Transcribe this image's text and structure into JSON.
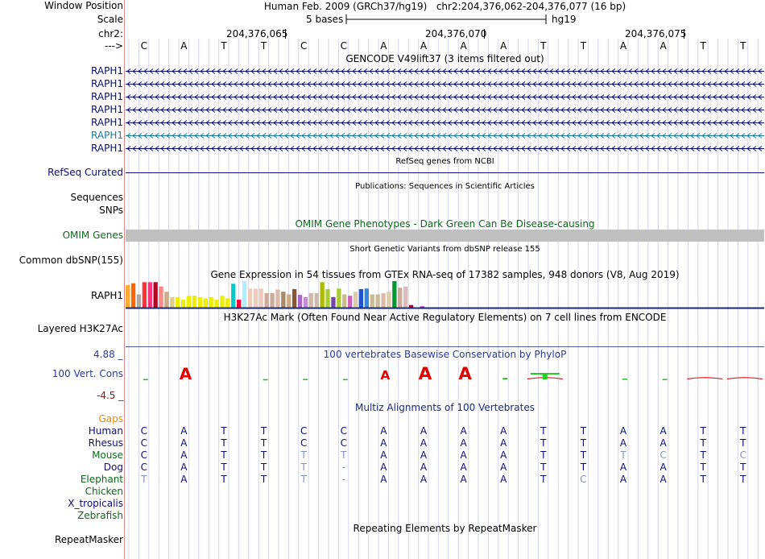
{
  "position": {
    "label_window": "Window Position",
    "label_scale": "Scale",
    "label_chrom": "chr2:",
    "label_strand": "--->",
    "assembly": "Human Feb. 2009 (GRCh37/hg19)",
    "range": "chr2:204,376,062-204,376,077 (16 bp)",
    "scale_text": "5 bases",
    "scale_db": "hg19",
    "ticks": [
      "204,376,065",
      "204,376,070",
      "204,376,075"
    ],
    "sequence": [
      "C",
      "A",
      "T",
      "T",
      "C",
      "C",
      "A",
      "A",
      "A",
      "A",
      "T",
      "T",
      "A",
      "A",
      "T",
      "T"
    ]
  },
  "gencode": {
    "title": "GENCODE V49lift37 (3 items filtered out)",
    "genes": [
      "RAPH1",
      "RAPH1",
      "RAPH1",
      "RAPH1",
      "RAPH1",
      "RAPH1",
      "RAPH1"
    ],
    "colors": [
      "#0c0c78",
      "#0c0c78",
      "#0c0c78",
      "#0c0c78",
      "#0c0c78",
      "#1a7a9a",
      "#0c0c78"
    ]
  },
  "refseq": {
    "title": "RefSeq genes from NCBI",
    "label": "RefSeq Curated"
  },
  "publications": {
    "title": "Publications: Sequences in Scientific Articles",
    "label": "Sequences"
  },
  "snps": {
    "label": "SNPs"
  },
  "omim": {
    "title": "OMIM Gene Phenotypes - Dark Green Can Be Disease-causing",
    "label": "OMIM Genes"
  },
  "dbsnp": {
    "title": "Short Genetic Variants from dbSNP release 155",
    "label": "Common dbSNP(155)"
  },
  "gtex": {
    "title": "Gene Expression in 54 tissues from GTEx RNA-seq of 17382 samples, 948 donors (V8, Aug 2019)",
    "label": "RAPH1",
    "bars": [
      {
        "c": "#ffaa33",
        "v": 0.85
      },
      {
        "c": "#ff6600",
        "v": 0.92
      },
      {
        "c": "#aaaaaa",
        "v": 0.5
      },
      {
        "c": "#ff3333",
        "v": 0.96
      },
      {
        "c": "#ff3377",
        "v": 0.96
      },
      {
        "c": "#bb0022",
        "v": 0.96
      },
      {
        "c": "#ff8888",
        "v": 0.8
      },
      {
        "c": "#ccaa88",
        "v": 0.6
      },
      {
        "c": "#ddcc88",
        "v": 0.4
      },
      {
        "c": "#eeee00",
        "v": 0.4
      },
      {
        "c": "#eeee00",
        "v": 0.3
      },
      {
        "c": "#eeee00",
        "v": 0.45
      },
      {
        "c": "#eeee00",
        "v": 0.45
      },
      {
        "c": "#eeee00",
        "v": 0.4
      },
      {
        "c": "#eeee00",
        "v": 0.35
      },
      {
        "c": "#eeee00",
        "v": 0.4
      },
      {
        "c": "#eeee00",
        "v": 0.3
      },
      {
        "c": "#eeee00",
        "v": 0.45
      },
      {
        "c": "#eeee00",
        "v": 0.35
      },
      {
        "c": "#00cccc",
        "v": 0.9
      },
      {
        "c": "#ff0033",
        "v": 0.3
      },
      {
        "c": "#aaeeff",
        "v": 1.0
      },
      {
        "c": "#eeccbb",
        "v": 0.72
      },
      {
        "c": "#eeccbb",
        "v": 0.72
      },
      {
        "c": "#eeccbb",
        "v": 0.72
      },
      {
        "c": "#ccaa99",
        "v": 0.55
      },
      {
        "c": "#ccaa99",
        "v": 0.55
      },
      {
        "c": "#ddbbaa",
        "v": 0.68
      },
      {
        "c": "#aa8866",
        "v": 0.6
      },
      {
        "c": "#ccaa88",
        "v": 0.5
      },
      {
        "c": "#885533",
        "v": 0.7
      },
      {
        "c": "#aa66cc",
        "v": 0.48
      },
      {
        "c": "#cc88dd",
        "v": 0.4
      },
      {
        "c": "#ccbbaa",
        "v": 0.55
      },
      {
        "c": "#ccbbaa",
        "v": 0.55
      },
      {
        "c": "#aabb00",
        "v": 0.96
      },
      {
        "c": "#aacc33",
        "v": 0.7
      },
      {
        "c": "#7744aa",
        "v": 0.4
      },
      {
        "c": "#aacc33",
        "v": 0.72
      },
      {
        "c": "#ccbb88",
        "v": 0.5
      },
      {
        "c": "#cc66bb",
        "v": 0.45
      },
      {
        "c": "#ddccaa",
        "v": 0.6
      },
      {
        "c": "#2255cc",
        "v": 0.7
      },
      {
        "c": "#3388dd",
        "v": 0.72
      },
      {
        "c": "#ccbb99",
        "v": 0.5
      },
      {
        "c": "#ccbb99",
        "v": 0.5
      },
      {
        "c": "#ddbbaa",
        "v": 0.55
      },
      {
        "c": "#ddccaa",
        "v": 0.6
      },
      {
        "c": "#009933",
        "v": 1.0
      },
      {
        "c": "#ccaa99",
        "v": 0.75
      },
      {
        "c": "#ddbbbb",
        "v": 0.8
      },
      {
        "c": "#aa0033",
        "v": 0.1
      },
      {
        "c": "#ffffff",
        "v": 0.05
      },
      {
        "c": "#aa22cc",
        "v": 0.05
      }
    ]
  },
  "h3k27ac": {
    "title": "H3K27Ac Mark (Often Found Near Active Regulatory Elements) on 7 cell lines from ENCODE",
    "label": "Layered H3K27Ac"
  },
  "phylop": {
    "title": "100 vertebrates Basewise Conservation by PhyloP",
    "label": "100 Vert. Cons",
    "max": "4.88 _",
    "min": "-4.5 _",
    "values": [
      0.3,
      4.5,
      0.0,
      0.2,
      0.4,
      0.3,
      3.5,
      4.88,
      4.8,
      1.2,
      -2.5,
      0.0,
      0.6,
      0.4,
      -1.4,
      -0.9
    ]
  },
  "multiz": {
    "title": "Multiz Alignments of 100 Vertebrates",
    "gaps_label": "Gaps",
    "gaps_color": "#e88a00",
    "species": [
      {
        "name": "Human",
        "color": "#0c0c78",
        "seq": [
          "C",
          "A",
          "T",
          "T",
          "C",
          "C",
          "A",
          "A",
          "A",
          "A",
          "T",
          "T",
          "A",
          "A",
          "T",
          "T"
        ],
        "dim": []
      },
      {
        "name": "Rhesus",
        "color": "#0c0c78",
        "seq": [
          "C",
          "A",
          "T",
          "T",
          "C",
          "C",
          "A",
          "A",
          "A",
          "A",
          "T",
          "T",
          "A",
          "A",
          "T",
          "T"
        ],
        "dim": []
      },
      {
        "name": "Mouse",
        "color": "#0a6a1a",
        "seq": [
          "C",
          "A",
          "T",
          "T",
          "T",
          "T",
          "A",
          "A",
          "A",
          "A",
          "T",
          "T",
          "T",
          "C",
          "T",
          "C"
        ],
        "dim": [
          4,
          5,
          12,
          13,
          15
        ]
      },
      {
        "name": "Dog",
        "color": "#0c0c78",
        "seq": [
          "C",
          "A",
          "T",
          "T",
          "T",
          "-",
          "A",
          "A",
          "A",
          "A",
          "T",
          "T",
          "A",
          "A",
          "T",
          "T"
        ],
        "dim": [
          4,
          5
        ]
      },
      {
        "name": "Elephant",
        "color": "#0a6a1a",
        "seq": [
          "T",
          "A",
          "T",
          "T",
          "T",
          "-",
          "A",
          "A",
          "A",
          "A",
          "T",
          "C",
          "A",
          "A",
          "T",
          "T"
        ],
        "dim": [
          0,
          4,
          5,
          11
        ]
      },
      {
        "name": "Chicken",
        "color": "#0a6a1a",
        "seq": [],
        "dim": []
      },
      {
        "name": "X_tropicalis",
        "color": "#0c0c78",
        "seq": [],
        "dim": []
      },
      {
        "name": "Zebrafish",
        "color": "#0a6a1a",
        "seq": [],
        "dim": []
      }
    ]
  },
  "repeatmasker": {
    "title": "Repeating Elements by RepeatMasker",
    "label": "RepeatMasker"
  },
  "colors": {
    "dark_blue": "#0c0c78",
    "omim_green": "#0a6a1a",
    "phylop_pos": "#0033cc",
    "phylop_neg": "#8b1a1a"
  }
}
